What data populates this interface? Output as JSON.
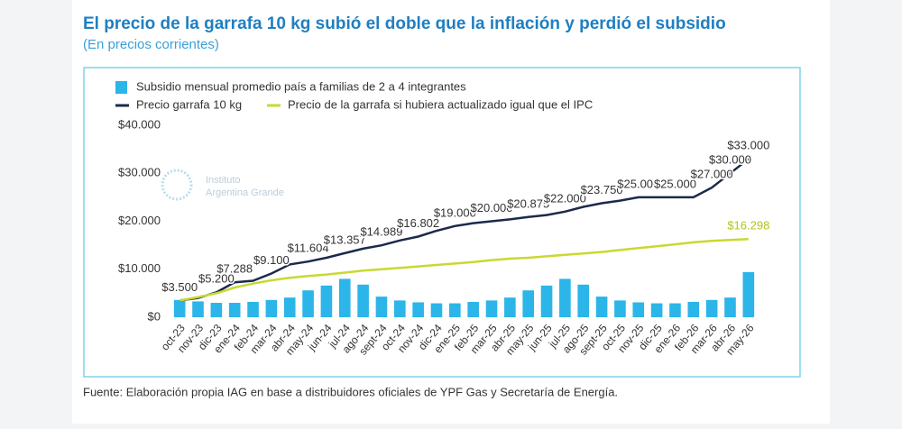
{
  "chart_data": {
    "type": "bar-line",
    "title": "El precio de la garrafa 10 kg subió el doble que la inflación y perdió el subsidio",
    "subtitle": "(En precios corrientes)",
    "source": "Fuente: Elaboración propia IAG en base a distribuidores oficiales de YPF Gas y Secretaría de Energía.",
    "watermark": [
      "Instituto",
      "Argentina Grande"
    ],
    "categories": [
      "oct-23",
      "nov-23",
      "dic-23",
      "ene-24",
      "feb-24",
      "mar-24",
      "abr-24",
      "may-24",
      "jun-24",
      "jul-24",
      "ago-24",
      "sept-24",
      "oct-24",
      "nov-24",
      "dic-24",
      "ene-25",
      "feb-25",
      "mar-25",
      "abr-25",
      "may-25",
      "jun-25",
      "jul-25",
      "ago-25",
      "sept-25",
      "oct-25",
      "nov-25",
      "dic-25",
      "ene-26",
      "feb-26",
      "mar-26",
      "abr-26",
      "may-26"
    ],
    "series": [
      {
        "name": "Subsidio mensual promedio país a familias de 2 a 4 integrantes",
        "kind": "bar",
        "color": "#2bb5e8",
        "values": [
          3600,
          3300,
          3000,
          3000,
          3200,
          3600,
          4100,
          5600,
          6600,
          8000,
          6800,
          4300,
          3500,
          3100,
          2900,
          2900,
          3200,
          3500,
          4100,
          5600,
          6600,
          8000,
          6800,
          4300,
          3500,
          3100,
          2900,
          2900,
          3200,
          3600,
          4100,
          9400
        ]
      },
      {
        "name": "Precio garrafa 10 kg",
        "kind": "line",
        "color": "#1b2a4a",
        "values": [
          3500,
          4000,
          5200,
          7288,
          7600,
          9100,
          11000,
          11604,
          12400,
          13357,
          14300,
          14989,
          16000,
          16802,
          18000,
          19000,
          19600,
          20000,
          20400,
          20875,
          21300,
          22000,
          23000,
          23750,
          24300,
          25000,
          25000,
          25000,
          25000,
          27000,
          30000,
          33000
        ],
        "value_labels": [
          "$3.500",
          null,
          "$5.200",
          "$7.288",
          null,
          "$9.100",
          null,
          "$11.604",
          null,
          "$13.357",
          null,
          "$14.989",
          null,
          "$16.802",
          null,
          "$19.000",
          null,
          "$20.000",
          null,
          "$20.875",
          null,
          "$22.000",
          null,
          "$23.750",
          null,
          "$25.000",
          null,
          "$25.000",
          null,
          "$27.000",
          "$30.000",
          "$33.000"
        ]
      },
      {
        "name": "Precio de la garrafa si hubiera actualizado igual que el IPC",
        "kind": "line",
        "color": "#c8d932",
        "values": [
          3500,
          4200,
          5000,
          6200,
          7000,
          7700,
          8200,
          8600,
          8900,
          9300,
          9700,
          10000,
          10300,
          10600,
          10900,
          11200,
          11500,
          11900,
          12200,
          12400,
          12700,
          13000,
          13300,
          13600,
          14000,
          14400,
          14800,
          15200,
          15600,
          15900,
          16100,
          16298
        ],
        "value_labels": [
          null,
          null,
          null,
          null,
          null,
          null,
          null,
          null,
          null,
          null,
          null,
          null,
          null,
          null,
          null,
          null,
          null,
          null,
          null,
          null,
          null,
          null,
          null,
          null,
          null,
          null,
          null,
          null,
          null,
          null,
          null,
          "$16.298"
        ]
      }
    ],
    "ylim": [
      0,
      40000
    ],
    "yticks": [
      {
        "value": 0,
        "label": "$0"
      },
      {
        "value": 10000,
        "label": "$10.000"
      },
      {
        "value": 20000,
        "label": "$20.000"
      },
      {
        "value": 30000,
        "label": "$30.000"
      },
      {
        "value": 40000,
        "label": "$40.000"
      }
    ],
    "grid": false,
    "legend": "top-left"
  }
}
